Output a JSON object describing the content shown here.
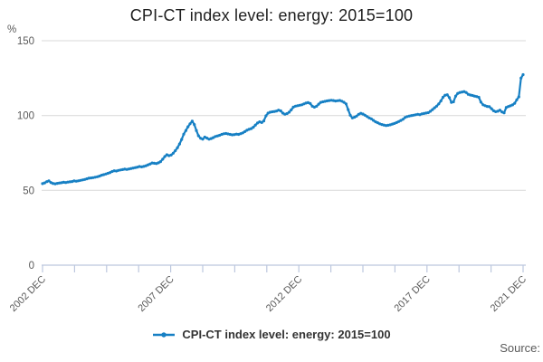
{
  "title": "CPI-CT index level: energy: 2015=100",
  "y_axis": {
    "unit": "%"
  },
  "x_axis": {
    "minor_tick_count": 16,
    "labeled_tick_indices": [
      0,
      4,
      8,
      12,
      15
    ]
  },
  "legend": {
    "label": "CPI-CT index level: energy: 2015=100",
    "marker": "line-with-dot"
  },
  "source": {
    "label": "Source:"
  },
  "colors": {
    "line": "#1780c4",
    "grid": "#d9d9d9",
    "axis": "#bcc7de",
    "muted_text": "#595959",
    "title_text": "#1f1f1f",
    "legend_text": "#333333"
  },
  "chart_data": {
    "type": "line",
    "title": "CPI-CT index level: energy: 2015=100",
    "ylabel": "%",
    "ylim": [
      0,
      150
    ],
    "y_ticks": [
      150,
      100,
      50,
      0
    ],
    "x_tick_labels": [
      "2002 DEC",
      "2007 DEC",
      "2012 DEC",
      "2017 DEC",
      "2021 DEC"
    ],
    "grid": "horizontal",
    "legend_position": "bottom",
    "series": [
      {
        "name": "CPI-CT index level: energy: 2015=100",
        "start": "2002-12",
        "end": "2021-12",
        "frequency": "monthly",
        "values": [
          54.5,
          55.0,
          55.8,
          56.3,
          55.2,
          54.6,
          54.4,
          54.7,
          54.9,
          55.1,
          55.4,
          55.2,
          55.5,
          55.7,
          55.9,
          56.3,
          56.1,
          56.4,
          56.7,
          57.0,
          57.3,
          57.7,
          58.1,
          58.3,
          58.5,
          58.8,
          59.1,
          59.5,
          60.1,
          60.5,
          60.9,
          61.4,
          61.9,
          62.6,
          63.1,
          62.9,
          63.3,
          63.6,
          63.9,
          64.2,
          64.0,
          64.3,
          64.6,
          64.9,
          65.2,
          65.5,
          65.9,
          65.7,
          66.0,
          66.4,
          67.0,
          67.6,
          68.3,
          68.1,
          67.9,
          68.4,
          69.2,
          70.8,
          72.6,
          73.8,
          73.2,
          73.6,
          74.8,
          76.5,
          78.5,
          81.0,
          84.0,
          87.5,
          90.0,
          92.5,
          94.5,
          96.3,
          94.0,
          90.0,
          86.5,
          84.8,
          84.2,
          85.6,
          84.9,
          84.2,
          84.6,
          85.2,
          86.0,
          86.4,
          86.8,
          87.4,
          87.8,
          88.0,
          87.7,
          87.4,
          87.1,
          87.3,
          87.6,
          87.4,
          87.9,
          88.4,
          89.3,
          90.2,
          90.8,
          91.3,
          92.2,
          93.6,
          95.0,
          95.8,
          95.3,
          96.4,
          99.8,
          101.6,
          102.2,
          102.5,
          102.7,
          103.0,
          103.6,
          103.1,
          101.6,
          100.9,
          101.3,
          102.2,
          103.8,
          105.6,
          106.3,
          106.6,
          106.9,
          107.2,
          107.8,
          108.3,
          108.6,
          108.0,
          106.2,
          105.6,
          106.2,
          107.6,
          108.8,
          109.2,
          109.5,
          109.8,
          110.0,
          110.2,
          110.0,
          109.7,
          109.9,
          110.1,
          109.6,
          108.9,
          107.8,
          104.0,
          100.2,
          98.4,
          98.9,
          99.6,
          100.8,
          101.5,
          101.0,
          100.2,
          99.3,
          98.4,
          97.8,
          96.8,
          95.8,
          95.2,
          94.5,
          94.0,
          93.6,
          93.3,
          93.5,
          93.8,
          94.3,
          94.7,
          95.3,
          96.0,
          96.7,
          97.5,
          98.7,
          99.3,
          99.7,
          100.0,
          100.2,
          100.5,
          100.8,
          100.6,
          101.1,
          101.4,
          101.7,
          101.9,
          102.8,
          104.0,
          105.2,
          106.3,
          107.8,
          109.8,
          112.2,
          113.6,
          113.9,
          112.0,
          108.8,
          109.2,
          113.0,
          114.8,
          115.4,
          115.7,
          116.0,
          115.4,
          114.2,
          113.7,
          113.4,
          113.0,
          112.7,
          112.2,
          109.0,
          107.2,
          106.6,
          106.1,
          105.9,
          104.6,
          103.2,
          102.6,
          102.9,
          103.6,
          102.4,
          101.8,
          105.4,
          106.0,
          106.5,
          107.1,
          108.2,
          110.5,
          112.5,
          125.0,
          127.3
        ]
      }
    ]
  }
}
